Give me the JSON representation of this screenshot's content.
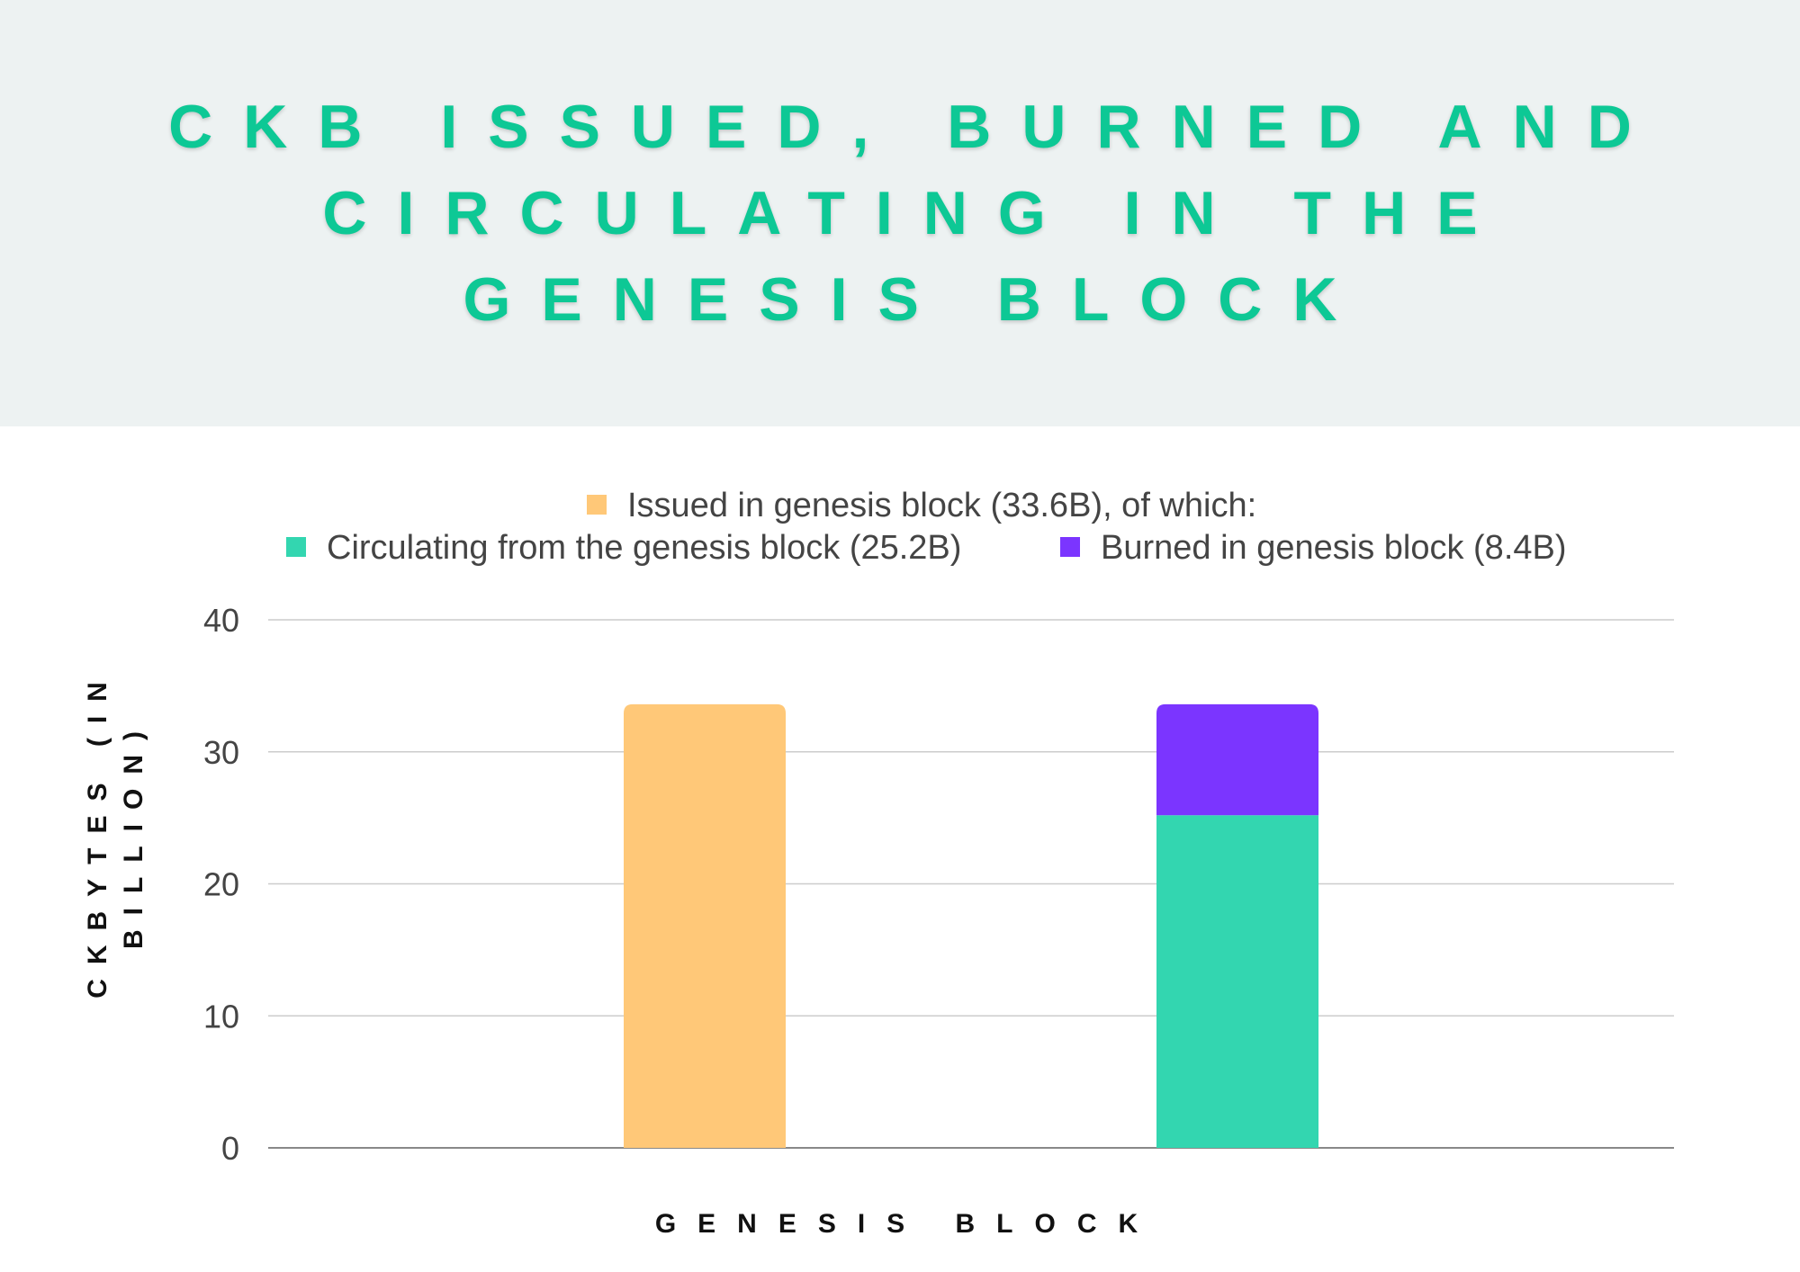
{
  "chart_data": {
    "type": "bar",
    "stacked": true,
    "title": "CKB ISSUED, BURNED AND CIRCULATING IN THE GENESIS BLOCK",
    "xlabel": "GENESIS BLOCK",
    "ylabel_line1": "CKBYTES (IN",
    "ylabel_line2": "BILLION)",
    "ylim": [
      0,
      40
    ],
    "yticks": [
      0,
      10,
      20,
      30,
      40
    ],
    "grid": true,
    "legend_position": "top",
    "legend": [
      {
        "label": "Issued in genesis block (33.6B), of which:",
        "color": "#ffc878"
      },
      {
        "label": "Circulating from the genesis block (25.2B)",
        "color": "#33d6b0"
      },
      {
        "label": "Burned in genesis block (8.4B)",
        "color": "#7b35ff"
      }
    ],
    "bars": [
      {
        "segments": [
          {
            "series": "Issued in genesis block",
            "value": 33.6,
            "color": "#ffc878"
          }
        ]
      },
      {
        "segments": [
          {
            "series": "Circulating from the genesis block",
            "value": 25.2,
            "color": "#33d6b0"
          },
          {
            "series": "Burned in genesis block",
            "value": 8.4,
            "color": "#7b35ff"
          }
        ]
      }
    ]
  }
}
